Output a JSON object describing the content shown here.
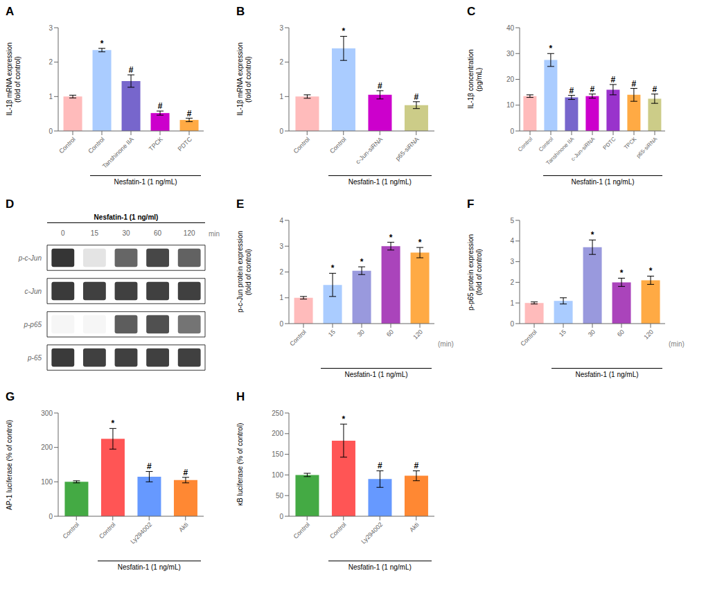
{
  "chart_data": [
    {
      "type": "bar",
      "title": "A",
      "categories": [
        "Control",
        "Control",
        "Tanshinone IIA",
        "TPCK",
        "PDTC"
      ],
      "values": [
        1.0,
        2.35,
        1.45,
        0.52,
        0.32
      ],
      "errors": [
        0.04,
        0.05,
        0.18,
        0.06,
        0.05
      ],
      "colors": [
        "#FFBBBB",
        "#AACCFF",
        "#7766CC",
        "#CC00CC",
        "#FFAA44"
      ],
      "ylabel": "IL-1β mRNA expression\n(fold of control)",
      "ylim": [
        0,
        3
      ],
      "yticks": [
        0,
        1,
        2,
        3
      ],
      "annotations": [
        null,
        "*",
        "#",
        "#",
        "#"
      ],
      "groups": [
        null,
        "Nesfatin-1 (1 ng/mL)",
        "Nesfatin-1 (1 ng/mL)",
        "Nesfatin-1 (1 ng/mL)",
        "Nesfatin-1 (1 ng/mL)"
      ]
    },
    {
      "type": "bar",
      "title": "B",
      "categories": [
        "Control",
        "Control",
        "c-Jun-siRNA",
        "p65-siRNA"
      ],
      "values": [
        1.0,
        2.4,
        1.05,
        0.75
      ],
      "errors": [
        0.05,
        0.35,
        0.12,
        0.1
      ],
      "colors": [
        "#FFBBBB",
        "#AACCFF",
        "#CC00CC",
        "#CCCC88"
      ],
      "ylabel": "IL-1β mRNA expression\n(fold of control)",
      "ylim": [
        0,
        3
      ],
      "yticks": [
        0,
        1,
        2,
        3
      ],
      "annotations": [
        null,
        "*",
        "#",
        "#"
      ],
      "groups": [
        null,
        "Nesfatin-1 (1 ng/mL)",
        "Nesfatin-1 (1 ng/mL)",
        "Nesfatin-1 (1 ng/mL)"
      ]
    },
    {
      "type": "bar",
      "title": "C",
      "categories": [
        "Control",
        "Control",
        "Tanshinone IIA",
        "c-Jun-siRNA",
        "PDTC",
        "TPCK",
        "p65-siRNA"
      ],
      "values": [
        13.5,
        27.5,
        13.0,
        13.5,
        16.0,
        14.0,
        12.5
      ],
      "errors": [
        0.5,
        2.5,
        0.8,
        0.8,
        2.0,
        2.5,
        1.8
      ],
      "colors": [
        "#FFBBBB",
        "#AACCFF",
        "#7766CC",
        "#CC00CC",
        "#9933CC",
        "#FFAA44",
        "#CCCC88"
      ],
      "ylabel": "IL-1β concentration\n(pg/mL)",
      "ylim": [
        0,
        40
      ],
      "yticks": [
        0,
        10,
        20,
        30,
        40
      ],
      "annotations": [
        null,
        "*",
        "#",
        "#",
        "#",
        "#",
        "#"
      ],
      "groups": [
        null,
        "Nesfatin-1 (1 ng/mL)",
        "Nesfatin-1 (1 ng/mL)",
        "Nesfatin-1 (1 ng/mL)",
        "Nesfatin-1 (1 ng/mL)",
        "Nesfatin-1 (1 ng/mL)",
        "Nesfatin-1 (1 ng/mL)"
      ]
    },
    {
      "type": "heatmap",
      "title": "D",
      "subtitle": "Nesfatin-1 (1 ng/ml)",
      "categories": [
        "0",
        "15",
        "30",
        "60",
        "120"
      ],
      "xlabel": "min",
      "rows": [
        "p-c-Jun",
        "c-Jun",
        "p-p65",
        "p-65"
      ],
      "cells": [
        [
          0.9,
          0.12,
          0.68,
          0.82,
          0.7
        ],
        [
          0.88,
          0.85,
          0.85,
          0.85,
          0.85
        ],
        [
          0.04,
          0.04,
          0.72,
          0.78,
          0.62
        ],
        [
          0.88,
          0.85,
          0.85,
          0.85,
          0.85
        ]
      ]
    },
    {
      "type": "bar",
      "title": "E",
      "categories": [
        "Control",
        "15",
        "30",
        "60",
        "120"
      ],
      "values": [
        1.0,
        1.5,
        2.05,
        3.0,
        2.75
      ],
      "errors": [
        0.05,
        0.45,
        0.15,
        0.15,
        0.2
      ],
      "colors": [
        "#FFBBBB",
        "#AACCFF",
        "#9999DD",
        "#AA44BB",
        "#FFAA44"
      ],
      "ylabel": "p-c-Jun protein expression\n(fold of control)",
      "xlabel": "(min)",
      "ylim": [
        0,
        4
      ],
      "yticks": [
        0,
        1,
        2,
        3,
        4
      ],
      "annotations": [
        null,
        "*",
        "*",
        "*",
        "*"
      ],
      "groups": [
        null,
        "Nesfatin-1 (1 ng/mL)",
        "Nesfatin-1 (1 ng/mL)",
        "Nesfatin-1 (1 ng/mL)",
        "Nesfatin-1 (1 ng/mL)"
      ]
    },
    {
      "type": "bar",
      "title": "F",
      "categories": [
        "Control",
        "15",
        "30",
        "60",
        "120"
      ],
      "values": [
        1.0,
        1.1,
        3.7,
        2.0,
        2.1
      ],
      "errors": [
        0.05,
        0.15,
        0.35,
        0.2,
        0.2
      ],
      "colors": [
        "#FFBBBB",
        "#AACCFF",
        "#9999DD",
        "#AA44BB",
        "#FFAA44"
      ],
      "ylabel": "p-p65 protein expression\n(fold of control)",
      "xlabel": "(min)",
      "ylim": [
        0,
        5
      ],
      "yticks": [
        0,
        1,
        2,
        3,
        4,
        5
      ],
      "annotations": [
        null,
        null,
        "*",
        "*",
        "*"
      ],
      "groups": [
        null,
        "Nesfatin-1 (1 ng/mL)",
        "Nesfatin-1 (1 ng/mL)",
        "Nesfatin-1 (1 ng/mL)",
        "Nesfatin-1 (1 ng/mL)"
      ]
    },
    {
      "type": "bar",
      "title": "G",
      "categories": [
        "Control",
        "Control",
        "Ly294002",
        "Akti"
      ],
      "values": [
        100,
        225,
        115,
        105
      ],
      "errors": [
        3,
        30,
        15,
        8
      ],
      "colors": [
        "#44AA44",
        "#FF5555",
        "#6699FF",
        "#FF8833"
      ],
      "ylabel": "AP-1 luciferase (% of control)",
      "ylim": [
        0,
        300
      ],
      "yticks": [
        0,
        100,
        200,
        300
      ],
      "annotations": [
        null,
        "*",
        "#",
        "#"
      ],
      "groups": [
        null,
        "Nesfatin-1 (1 ng/mL)",
        "Nesfatin-1 (1 ng/mL)",
        "Nesfatin-1 (1 ng/mL)"
      ]
    },
    {
      "type": "bar",
      "title": "H",
      "categories": [
        "Control",
        "Control",
        "Ly294002",
        "Akti"
      ],
      "values": [
        100,
        183,
        90,
        98
      ],
      "errors": [
        4,
        40,
        20,
        12
      ],
      "colors": [
        "#44AA44",
        "#FF5555",
        "#6699FF",
        "#FF8833"
      ],
      "ylabel": "κB luciferase (% of control)",
      "ylim": [
        0,
        250
      ],
      "yticks": [
        0,
        50,
        100,
        150,
        200,
        250
      ],
      "annotations": [
        null,
        "*",
        "#",
        "#"
      ],
      "groups": [
        null,
        "Nesfatin-1 (1 ng/mL)",
        "Nesfatin-1 (1 ng/mL)",
        "Nesfatin-1 (1 ng/mL)"
      ]
    }
  ]
}
